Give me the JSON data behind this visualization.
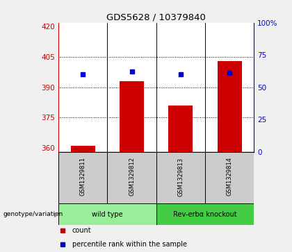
{
  "title": "GDS5628 / 10379840",
  "samples": [
    "GSM1329811",
    "GSM1329812",
    "GSM1329813",
    "GSM1329814"
  ],
  "counts": [
    361,
    393,
    381,
    403
  ],
  "percentile_ranks": [
    60,
    62,
    60,
    61
  ],
  "ylim_left": [
    358,
    422
  ],
  "ylim_right": [
    0,
    100
  ],
  "yticks_left": [
    360,
    375,
    390,
    405,
    420
  ],
  "yticks_right": [
    0,
    25,
    50,
    75,
    100
  ],
  "ytick_labels_right": [
    "0",
    "25",
    "50",
    "75",
    "100%"
  ],
  "bar_color": "#cc0000",
  "dot_color": "#0000cc",
  "genotype_groups": [
    {
      "label": "wild type",
      "indices": [
        0,
        1
      ],
      "color": "#99ee99"
    },
    {
      "label": "Rev-erbα knockout",
      "indices": [
        2,
        3
      ],
      "color": "#44cc44"
    }
  ],
  "genotype_label": "genotype/variation",
  "legend_items": [
    {
      "color": "#cc0000",
      "label": "count"
    },
    {
      "color": "#0000cc",
      "label": "percentile rank within the sample"
    }
  ],
  "background_color": "#f0f0f0",
  "plot_bg": "#ffffff",
  "sample_label_bg": "#cccccc"
}
